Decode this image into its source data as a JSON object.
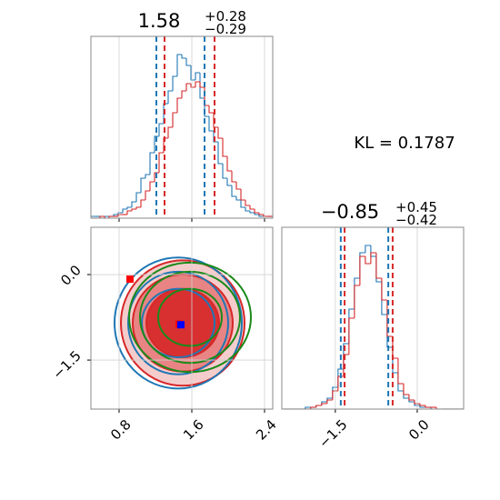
{
  "chart_data": [
    {
      "type": "histogram",
      "title": {
        "main": "1.58",
        "upper": "+0.28",
        "lower": "−0.29"
      },
      "annotation": "KL = 0.1787",
      "bins": [
        0.49,
        0.54,
        0.59,
        0.64,
        0.69,
        0.74,
        0.79,
        0.84,
        0.89,
        0.94,
        0.99,
        1.04,
        1.09,
        1.14,
        1.19,
        1.24,
        1.29,
        1.34,
        1.39,
        1.44,
        1.49,
        1.54,
        1.59,
        1.64,
        1.69,
        1.74,
        1.79,
        1.84,
        1.89,
        1.94,
        1.99,
        2.04,
        2.09,
        2.14,
        2.19,
        2.24,
        2.29,
        2.34,
        2.39,
        2.44,
        2.49
      ],
      "series": [
        {
          "color": "#1f77b4",
          "values": [
            0.01,
            0.01,
            0,
            0.01,
            0.01,
            0.02,
            0.03,
            0.05,
            0.06,
            0.09,
            0.14,
            0.22,
            0.24,
            0.36,
            0.45,
            0.52,
            0.63,
            0.7,
            0.78,
            0.9,
            0.88,
            0.84,
            0.76,
            0.8,
            0.66,
            0.56,
            0.48,
            0.42,
            0.3,
            0.22,
            0.18,
            0.12,
            0.1,
            0.06,
            0.04,
            0.03,
            0.02,
            0.01,
            0.01,
            0.01
          ]
        },
        {
          "color": "#d62728",
          "values": [
            0,
            0,
            0.01,
            0,
            0.01,
            0.01,
            0.02,
            0.02,
            0.04,
            0.05,
            0.06,
            0.1,
            0.15,
            0.2,
            0.25,
            0.36,
            0.44,
            0.5,
            0.58,
            0.66,
            0.7,
            0.74,
            0.72,
            0.75,
            0.72,
            0.62,
            0.58,
            0.5,
            0.44,
            0.34,
            0.26,
            0.2,
            0.16,
            0.1,
            0.07,
            0.05,
            0.03,
            0.02,
            0.01,
            0.01
          ]
        }
      ],
      "quantiles": [
        {
          "color": "#1f77b4",
          "values": [
            1.21,
            1.74
          ]
        },
        {
          "color": "#d62728",
          "values": [
            1.3,
            1.85
          ]
        }
      ],
      "xlim": [
        0.49,
        2.49
      ],
      "ylim": [
        0,
        1
      ],
      "xticks": [
        0.8,
        1.6,
        2.4
      ],
      "grid": true
    },
    {
      "type": "contour",
      "contours": [
        {
          "color": "#d62728",
          "filled": true,
          "ellipses": [
            [
              1.5,
              -0.85,
              0.68,
              1.1
            ],
            [
              1.5,
              -0.85,
              0.55,
              0.85
            ],
            [
              1.5,
              -0.85,
              0.4,
              0.6
            ]
          ]
        },
        {
          "color": "#1f77b4",
          "filled": false,
          "ellipses": [
            [
              1.45,
              -0.85,
              0.7,
              1.15
            ],
            [
              1.45,
              -0.85,
              0.55,
              0.9
            ],
            [
              1.45,
              -0.85,
              0.4,
              0.6
            ]
          ]
        },
        {
          "color": "#1a8a1a",
          "filled": false,
          "ellipses": [
            [
              1.58,
              -0.75,
              0.67,
              0.96
            ],
            [
              1.58,
              -0.75,
              0.55,
              0.8
            ],
            [
              1.58,
              -0.75,
              0.35,
              0.5
            ]
          ]
        }
      ],
      "points": [
        {
          "x": 0.92,
          "y": -0.08,
          "color": "#ff0000"
        },
        {
          "x": 1.46,
          "y": -0.87,
          "color": "#ff0000"
        },
        {
          "x": 1.48,
          "y": -0.88,
          "color": "#0000ff"
        }
      ],
      "xlim": [
        0.49,
        2.49
      ],
      "ylim": [
        -2.36,
        0.83
      ],
      "xticks": [
        0.8,
        1.6,
        2.4
      ],
      "yticks": [
        {
          "value": 0,
          "label": "0.0"
        },
        {
          "value": -1.5,
          "label": "−1.5"
        }
      ],
      "grid": true
    },
    {
      "type": "histogram",
      "title": {
        "main": "−0.85",
        "upper": "+0.45",
        "lower": "−0.42"
      },
      "bins": [
        -2.45,
        -2.35,
        -2.25,
        -2.15,
        -2.05,
        -1.95,
        -1.85,
        -1.75,
        -1.65,
        -1.55,
        -1.45,
        -1.35,
        -1.25,
        -1.15,
        -1.05,
        -0.95,
        -0.85,
        -0.75,
        -0.65,
        -0.55,
        -0.45,
        -0.35,
        -0.25,
        -0.15,
        -0.05,
        0.05,
        0.15,
        0.25,
        0.35,
        0.45,
        0.55,
        0.65,
        0.75,
        0.85
      ],
      "series": [
        {
          "color": "#1f77b4",
          "values": [
            0,
            0,
            0,
            0,
            0.01,
            0.01,
            0.02,
            0.04,
            0.06,
            0.12,
            0.22,
            0.36,
            0.55,
            0.72,
            0.86,
            0.9,
            0.84,
            0.7,
            0.52,
            0.34,
            0.2,
            0.1,
            0.06,
            0.04,
            0.02,
            0.01,
            0.01,
            0,
            0,
            0,
            0,
            0,
            0
          ]
        },
        {
          "color": "#d62728",
          "values": [
            0,
            0,
            0,
            0,
            0,
            0.01,
            0.02,
            0.03,
            0.05,
            0.1,
            0.18,
            0.3,
            0.5,
            0.68,
            0.84,
            0.8,
            0.86,
            0.72,
            0.6,
            0.4,
            0.28,
            0.14,
            0.08,
            0.05,
            0.03,
            0.02,
            0.01,
            0.01,
            0,
            0,
            0,
            0,
            0
          ]
        }
      ],
      "quantiles": [
        {
          "color": "#1f77b4",
          "values": [
            -1.4,
            -0.53
          ]
        },
        {
          "color": "#d62728",
          "values": [
            -1.33,
            -0.45
          ]
        }
      ],
      "xlim": [
        -2.48,
        0.85
      ],
      "ylim": [
        0,
        1
      ],
      "xticks": [
        {
          "value": -1.5,
          "label": "−1.5"
        },
        {
          "value": 0,
          "label": "0.0"
        }
      ],
      "grid": true
    }
  ]
}
